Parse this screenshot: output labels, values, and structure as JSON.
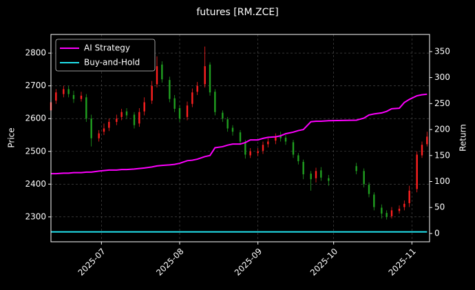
{
  "chart_data": {
    "type": "candlestick",
    "title": "futures [RM.ZCE]",
    "ylabel": "Price",
    "y2label": "Return",
    "x": [
      "2025-06-11",
      "2025-06-13",
      "2025-06-16",
      "2025-06-18",
      "2025-06-20",
      "2025-06-23",
      "2025-06-25",
      "2025-06-27",
      "2025-06-30",
      "2025-07-02",
      "2025-07-04",
      "2025-07-07",
      "2025-07-09",
      "2025-07-11",
      "2025-07-14",
      "2025-07-16",
      "2025-07-18",
      "2025-07-21",
      "2025-07-23",
      "2025-07-25",
      "2025-07-28",
      "2025-07-30",
      "2025-08-01",
      "2025-08-04",
      "2025-08-06",
      "2025-08-08",
      "2025-08-11",
      "2025-08-13",
      "2025-08-15",
      "2025-08-18",
      "2025-08-20",
      "2025-08-22",
      "2025-08-25",
      "2025-08-27",
      "2025-08-29",
      "2025-09-01",
      "2025-09-03",
      "2025-09-05",
      "2025-09-08",
      "2025-09-10",
      "2025-09-12",
      "2025-09-15",
      "2025-09-17",
      "2025-09-19",
      "2025-09-22",
      "2025-09-24",
      "2025-09-26",
      "2025-09-29",
      "2025-10-10",
      "2025-10-13",
      "2025-10-15",
      "2025-10-17",
      "2025-10-20",
      "2025-10-22",
      "2025-10-24",
      "2025-10-27",
      "2025-10-29",
      "2025-10-31",
      "2025-11-03",
      "2025-11-05",
      "2025-11-07"
    ],
    "open": [
      2625,
      2655,
      2675,
      2690,
      2672,
      2660,
      2665,
      2600,
      2540,
      2560,
      2572,
      2590,
      2605,
      2622,
      2612,
      2585,
      2622,
      2655,
      2705,
      2765,
      2718,
      2662,
      2632,
      2605,
      2645,
      2682,
      2705,
      2765,
      2682,
      2618,
      2598,
      2572,
      2558,
      2528,
      2488,
      2495,
      2502,
      2522,
      2533,
      2548,
      2542,
      2528,
      2488,
      2468,
      2432,
      2418,
      2442,
      2418,
      2455,
      2440,
      2398,
      2368,
      2328,
      2312,
      2302,
      2318,
      2330,
      2342,
      2385,
      2488,
      2522
    ],
    "high": [
      2662,
      2690,
      2700,
      2700,
      2685,
      2682,
      2675,
      2612,
      2565,
      2585,
      2600,
      2612,
      2630,
      2632,
      2620,
      2632,
      2665,
      2715,
      2790,
      2775,
      2728,
      2672,
      2640,
      2652,
      2692,
      2712,
      2820,
      2772,
      2690,
      2625,
      2605,
      2580,
      2565,
      2535,
      2510,
      2510,
      2530,
      2540,
      2555,
      2560,
      2550,
      2535,
      2495,
      2475,
      2440,
      2450,
      2452,
      2428,
      2465,
      2448,
      2405,
      2375,
      2338,
      2320,
      2330,
      2335,
      2350,
      2395,
      2500,
      2530,
      2560
    ],
    "low": [
      2615,
      2645,
      2665,
      2665,
      2648,
      2652,
      2590,
      2515,
      2530,
      2550,
      2562,
      2580,
      2595,
      2600,
      2570,
      2575,
      2610,
      2645,
      2695,
      2710,
      2650,
      2620,
      2590,
      2595,
      2635,
      2672,
      2695,
      2670,
      2610,
      2590,
      2560,
      2548,
      2520,
      2478,
      2480,
      2485,
      2492,
      2512,
      2522,
      2530,
      2520,
      2480,
      2460,
      2415,
      2380,
      2405,
      2410,
      2395,
      2430,
      2390,
      2360,
      2320,
      2295,
      2292,
      2295,
      2310,
      2320,
      2330,
      2375,
      2480,
      2515
    ],
    "close": [
      2650,
      2680,
      2690,
      2675,
      2660,
      2670,
      2600,
      2540,
      2555,
      2570,
      2590,
      2600,
      2620,
      2610,
      2580,
      2620,
      2650,
      2700,
      2760,
      2720,
      2660,
      2630,
      2600,
      2640,
      2680,
      2700,
      2760,
      2680,
      2620,
      2600,
      2570,
      2560,
      2530,
      2490,
      2500,
      2500,
      2520,
      2530,
      2545,
      2540,
      2530,
      2490,
      2470,
      2430,
      2415,
      2440,
      2420,
      2410,
      2440,
      2400,
      2370,
      2330,
      2310,
      2300,
      2320,
      2325,
      2340,
      2380,
      2490,
      2520,
      2545
    ],
    "up_color": "#ff2020",
    "down_color": "#20a020",
    "series": [
      {
        "name": "AI Strategy",
        "color": "#ff00ff",
        "axis": "y2",
        "values": [
          115,
          115,
          116,
          116,
          117,
          117,
          118,
          118,
          120,
          121,
          122,
          122,
          123,
          123,
          124,
          125,
          126,
          128,
          130,
          131,
          132,
          133,
          135,
          140,
          141,
          143,
          148,
          150,
          165,
          167,
          170,
          172,
          172,
          175,
          180,
          180,
          183,
          185,
          186,
          188,
          192,
          195,
          198,
          200,
          215,
          216,
          216,
          217,
          218,
          222,
          228,
          230,
          232,
          235,
          240,
          241,
          252,
          258,
          265,
          267,
          268
        ]
      },
      {
        "name": "Buy-and-Hold",
        "color": "#22e5f0",
        "axis": "y2",
        "values": [
          3,
          3,
          3,
          3,
          3,
          3,
          3,
          3,
          3,
          3,
          3,
          3,
          3,
          3,
          3,
          3,
          3,
          3,
          3,
          3,
          3,
          3,
          3,
          3,
          3,
          3,
          3,
          3,
          3,
          3,
          3,
          3,
          3,
          3,
          3,
          3,
          3,
          3,
          3,
          3,
          3,
          3,
          3,
          3,
          3,
          3,
          3,
          3,
          3,
          3,
          3,
          3,
          3,
          3,
          3,
          3,
          3,
          3,
          3,
          3,
          3
        ]
      }
    ],
    "xlim": [
      "2025-06-11",
      "2025-11-08"
    ],
    "xticks": [
      {
        "value": "2025-07-01",
        "label": "2025-07"
      },
      {
        "value": "2025-08-01",
        "label": "2025-08"
      },
      {
        "value": "2025-09-01",
        "label": "2025-09"
      },
      {
        "value": "2025-10-01",
        "label": "2025-10"
      },
      {
        "value": "2025-11-01",
        "label": "2025-11"
      }
    ],
    "ylim": [
      2224,
      2857
    ],
    "yticks": [
      2300,
      2400,
      2500,
      2600,
      2700,
      2800
    ],
    "y2lim": [
      -16,
      383
    ],
    "y2ticks": [
      0,
      50,
      100,
      150,
      200,
      250,
      300,
      350
    ],
    "grid": true,
    "legend": "upper left"
  }
}
